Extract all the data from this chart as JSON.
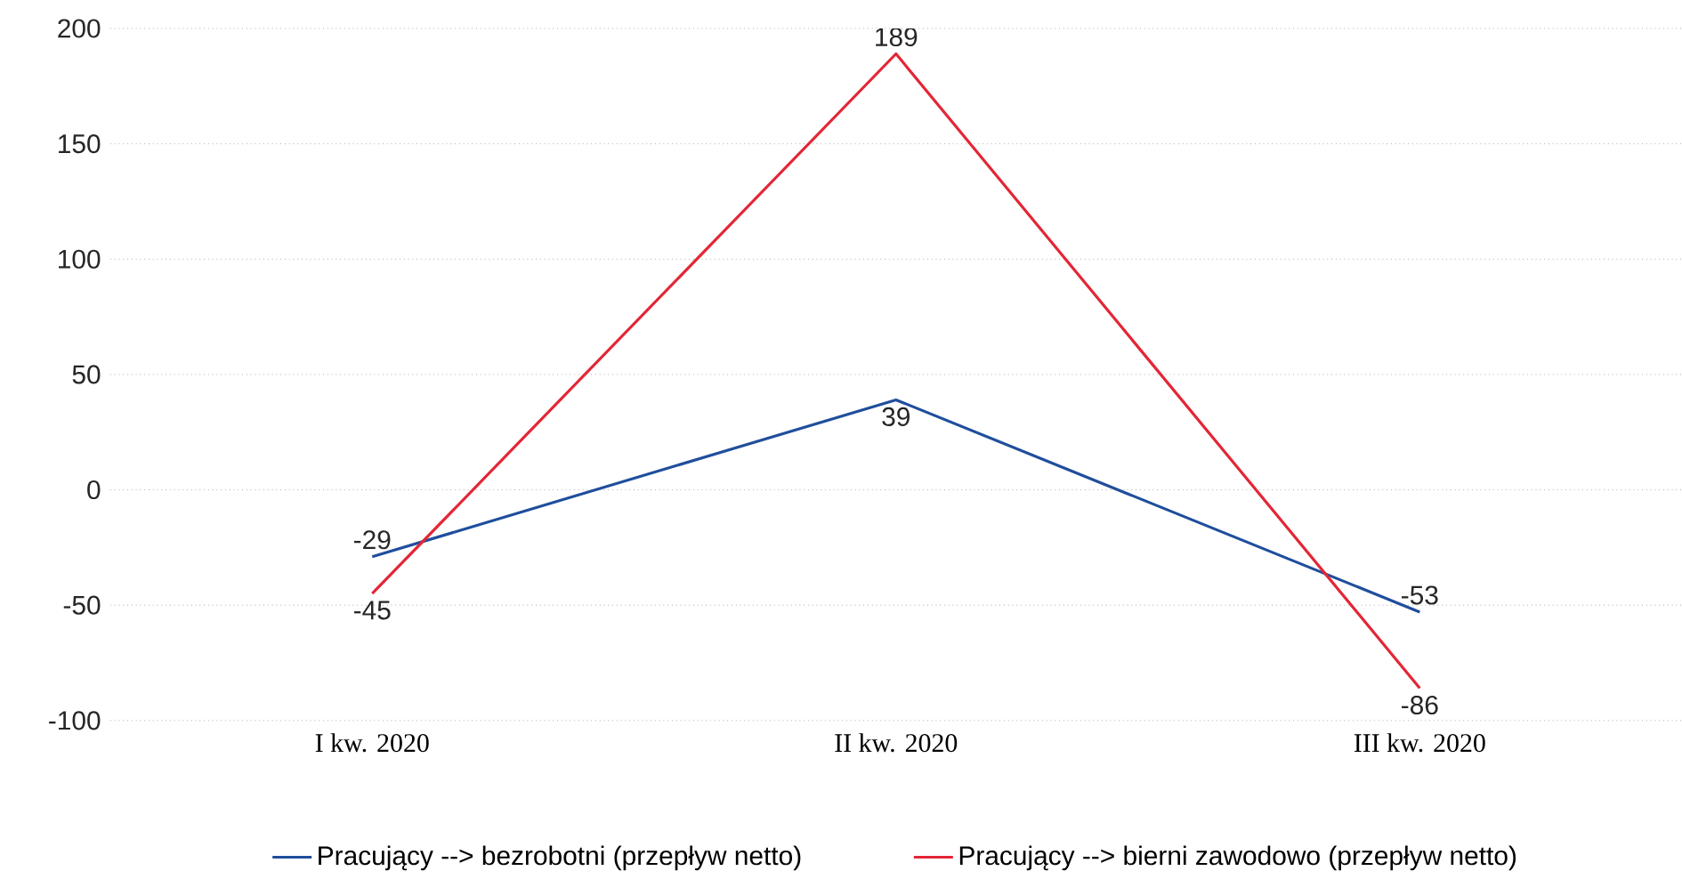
{
  "chart_data": {
    "type": "line",
    "categories": [
      "I kw. 2020",
      "II kw. 2020",
      "III kw. 2020"
    ],
    "series": [
      {
        "name": "Pracujący --> bezrobotni (przepływ netto)",
        "color": "#1f4e9c",
        "values": [
          -29,
          39,
          -53
        ]
      },
      {
        "name": "Pracujący --> bierni zawodowo (przepływ netto)",
        "color": "#e32636",
        "values": [
          -45,
          189,
          -86
        ]
      }
    ],
    "ylim": [
      -100,
      200
    ],
    "yticks": [
      -100,
      -50,
      0,
      50,
      100,
      150,
      200
    ],
    "grid": "y",
    "legend": "bottom",
    "data_labels": true,
    "marker": "none",
    "line_style": "solid"
  }
}
